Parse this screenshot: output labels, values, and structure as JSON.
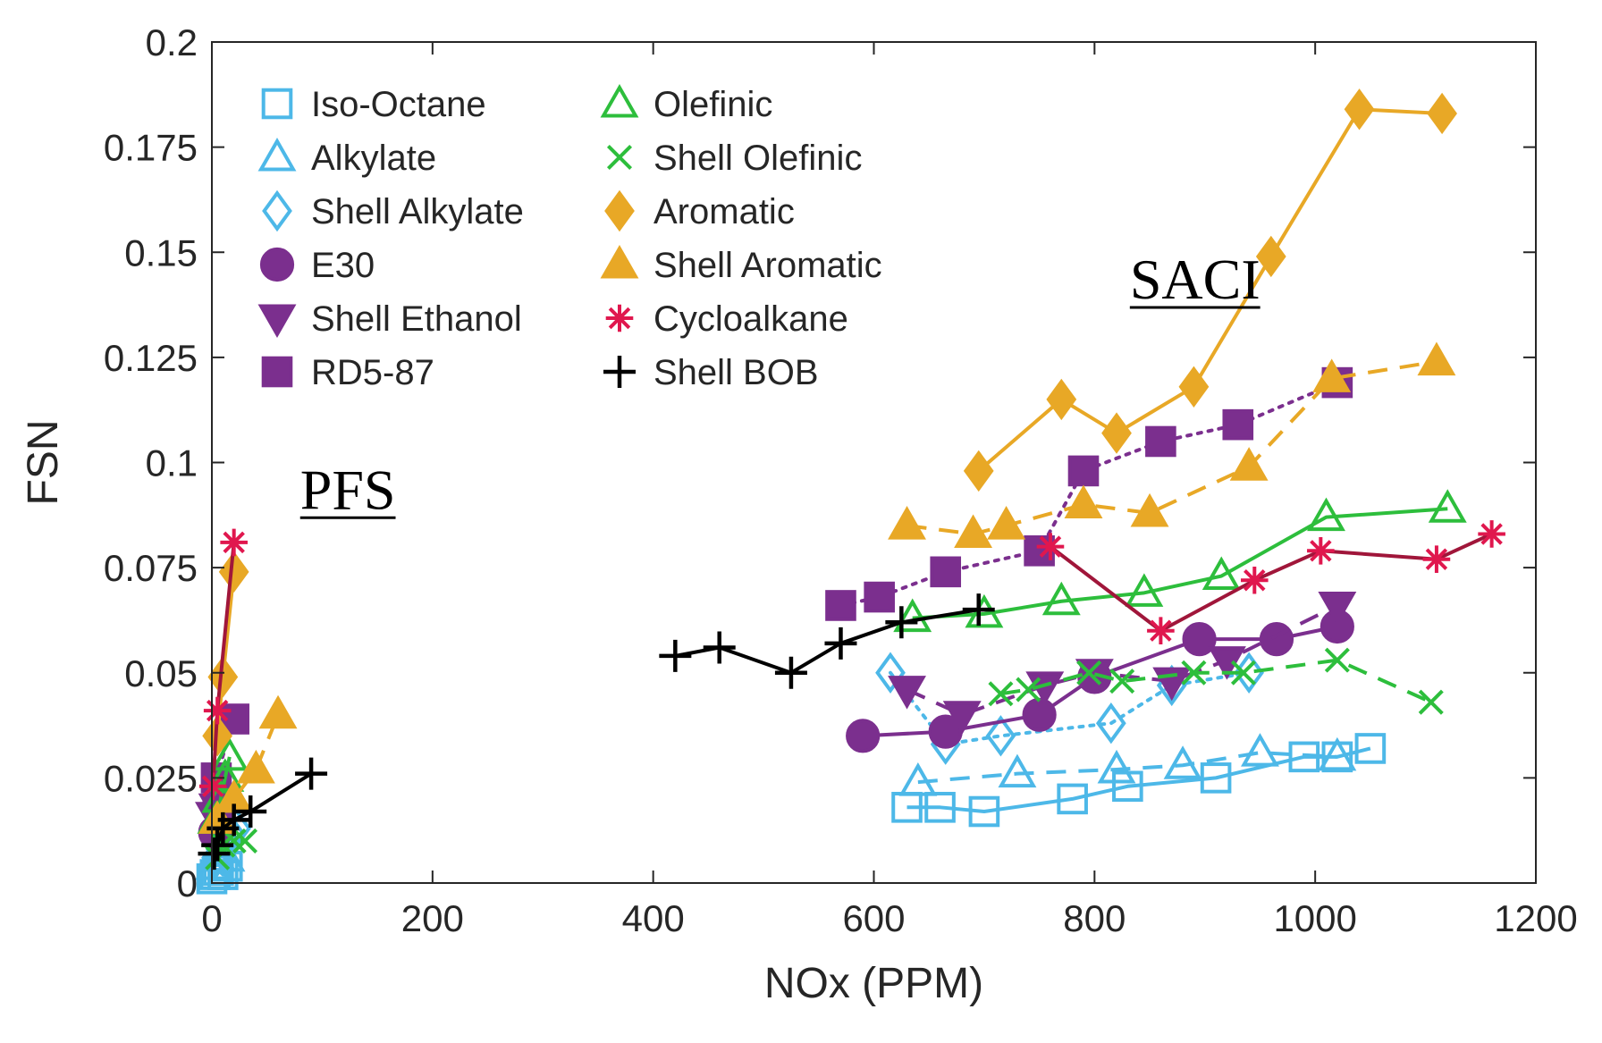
{
  "chart_data": {
    "type": "scatter",
    "title": "",
    "xlabel": "NOx (PPM)",
    "ylabel": "FSN",
    "xlim": [
      0,
      1200
    ],
    "ylim": [
      0,
      0.2
    ],
    "x_ticks": [
      0,
      200,
      400,
      600,
      800,
      1000,
      1200
    ],
    "x_tick_labels": [
      "0",
      "200",
      "400",
      "600",
      "800",
      "1000",
      "1200"
    ],
    "y_ticks": [
      0,
      0.025,
      0.05,
      0.075,
      0.1,
      0.125,
      0.15,
      0.175,
      0.2
    ],
    "y_tick_labels": [
      "0",
      "0.025",
      "0.05",
      "0.075",
      "0.1",
      "0.125",
      "0.15",
      "0.175",
      "0.2"
    ],
    "grid": false,
    "legend_position": "top-left",
    "annotations": [
      {
        "text": "PFS",
        "x": 80,
        "y": 0.089
      },
      {
        "text": "SACI",
        "x": 832,
        "y": 0.139
      }
    ],
    "series": [
      {
        "name": "Iso-Octane",
        "color": "#4db8e8",
        "marker": "square",
        "filled": false,
        "line": "solid",
        "pfs": [
          [
            0,
            0.001
          ],
          [
            3,
            0.002
          ],
          [
            6,
            0.003
          ],
          [
            10,
            0.002
          ],
          [
            14,
            0.004
          ]
        ],
        "saci": [
          [
            630,
            0.018
          ],
          [
            660,
            0.018
          ],
          [
            700,
            0.017
          ],
          [
            780,
            0.02
          ],
          [
            830,
            0.023
          ],
          [
            910,
            0.025
          ],
          [
            990,
            0.03
          ],
          [
            1020,
            0.03
          ],
          [
            1050,
            0.032
          ]
        ]
      },
      {
        "name": "Alkylate",
        "color": "#4db8e8",
        "marker": "triangle",
        "filled": false,
        "line": "dash",
        "pfs": [
          [
            2,
            0.004
          ],
          [
            5,
            0.006
          ],
          [
            9,
            0.008
          ],
          [
            13,
            0.006
          ]
        ],
        "saci": [
          [
            640,
            0.024
          ],
          [
            730,
            0.026
          ],
          [
            820,
            0.027
          ],
          [
            880,
            0.028
          ],
          [
            950,
            0.031
          ],
          [
            1020,
            0.03
          ]
        ]
      },
      {
        "name": "Shell Alkylate",
        "color": "#4db8e8",
        "marker": "diamond",
        "filled": false,
        "line": "dot",
        "pfs": [
          [
            4,
            0.006
          ],
          [
            8,
            0.008
          ],
          [
            12,
            0.01
          ],
          [
            16,
            0.012
          ],
          [
            22,
            0.013
          ]
        ],
        "saci": [
          [
            615,
            0.05
          ],
          [
            665,
            0.033
          ],
          [
            715,
            0.035
          ],
          [
            815,
            0.038
          ],
          [
            870,
            0.047
          ],
          [
            940,
            0.05
          ]
        ]
      },
      {
        "name": "E30",
        "color": "#7b2f8e",
        "marker": "circle",
        "filled": true,
        "line": "solid",
        "pfs": [
          [
            3,
            0.012
          ],
          [
            6,
            0.018
          ]
        ],
        "saci": [
          [
            590,
            0.035
          ],
          [
            665,
            0.036
          ],
          [
            750,
            0.04
          ],
          [
            800,
            0.049
          ],
          [
            895,
            0.058
          ],
          [
            965,
            0.058
          ],
          [
            1020,
            0.061
          ]
        ]
      },
      {
        "name": "Shell Ethanol",
        "color": "#7b2f8e",
        "marker": "triangle-down",
        "filled": true,
        "line": "dash",
        "pfs": [
          [
            2,
            0.016
          ],
          [
            5,
            0.018
          ]
        ],
        "saci": [
          [
            630,
            0.046
          ],
          [
            680,
            0.04
          ],
          [
            755,
            0.047
          ],
          [
            800,
            0.05
          ],
          [
            870,
            0.048
          ],
          [
            920,
            0.053
          ],
          [
            1020,
            0.066
          ]
        ]
      },
      {
        "name": "RD5-87",
        "color": "#7b2f8e",
        "marker": "square",
        "filled": true,
        "line": "dot",
        "pfs": [
          [
            4,
            0.025
          ],
          [
            20,
            0.039
          ]
        ],
        "saci": [
          [
            570,
            0.066
          ],
          [
            605,
            0.068
          ],
          [
            665,
            0.074
          ],
          [
            750,
            0.079
          ],
          [
            790,
            0.098
          ],
          [
            860,
            0.105
          ],
          [
            930,
            0.109
          ],
          [
            1020,
            0.119
          ]
        ]
      },
      {
        "name": "Olefinic",
        "color": "#2dbe3c",
        "marker": "triangle",
        "filled": false,
        "line": "solid",
        "pfs": [
          [
            4,
            0.015
          ],
          [
            8,
            0.02
          ],
          [
            12,
            0.025
          ],
          [
            16,
            0.03
          ]
        ],
        "saci": [
          [
            635,
            0.063
          ],
          [
            700,
            0.064
          ],
          [
            770,
            0.067
          ],
          [
            845,
            0.069
          ],
          [
            915,
            0.073
          ],
          [
            1010,
            0.087
          ],
          [
            1120,
            0.089
          ]
        ]
      },
      {
        "name": "Shell Olefinic",
        "color": "#2dbe3c",
        "marker": "x",
        "filled": false,
        "line": "dash",
        "pfs": [
          [
            5,
            0.006
          ],
          [
            10,
            0.009
          ],
          [
            20,
            0.01
          ],
          [
            30,
            0.01
          ]
        ],
        "saci": [
          [
            715,
            0.045
          ],
          [
            740,
            0.046
          ],
          [
            795,
            0.05
          ],
          [
            825,
            0.048
          ],
          [
            890,
            0.05
          ],
          [
            935,
            0.05
          ],
          [
            1020,
            0.053
          ],
          [
            1105,
            0.043
          ]
        ]
      },
      {
        "name": "Aromatic",
        "color": "#e8a826",
        "marker": "diamond",
        "filled": true,
        "line": "solid",
        "pfs": [
          [
            5,
            0.035
          ],
          [
            10,
            0.049
          ],
          [
            20,
            0.074
          ]
        ],
        "saci": [
          [
            695,
            0.098
          ],
          [
            770,
            0.115
          ],
          [
            820,
            0.107
          ],
          [
            890,
            0.118
          ],
          [
            960,
            0.149
          ],
          [
            1040,
            0.184
          ],
          [
            1115,
            0.183
          ]
        ]
      },
      {
        "name": "Shell Aromatic",
        "color": "#e8a826",
        "marker": "triangle",
        "filled": true,
        "line": "dash",
        "pfs": [
          [
            5,
            0.015
          ],
          [
            20,
            0.02
          ],
          [
            40,
            0.027
          ],
          [
            60,
            0.04
          ]
        ],
        "saci": [
          [
            630,
            0.085
          ],
          [
            690,
            0.083
          ],
          [
            720,
            0.085
          ],
          [
            790,
            0.09
          ],
          [
            850,
            0.088
          ],
          [
            940,
            0.099
          ],
          [
            1015,
            0.12
          ],
          [
            1110,
            0.124
          ]
        ]
      },
      {
        "name": "Cycloalkane",
        "color": "#e0174e",
        "marker": "asterisk",
        "filled": false,
        "line": "solid-maroon",
        "pfs": [
          [
            1,
            0.023
          ],
          [
            5,
            0.041
          ],
          [
            20,
            0.081
          ]
        ],
        "saci": [
          [
            760,
            0.08
          ],
          [
            860,
            0.06
          ],
          [
            945,
            0.072
          ],
          [
            1005,
            0.079
          ],
          [
            1110,
            0.077
          ],
          [
            1160,
            0.083
          ]
        ]
      },
      {
        "name": "Shell BOB",
        "color": "#000000",
        "marker": "plus",
        "filled": false,
        "line": "solid",
        "pfs": [
          [
            2,
            0.007
          ],
          [
            5,
            0.009
          ],
          [
            10,
            0.013
          ],
          [
            20,
            0.015
          ],
          [
            35,
            0.017
          ],
          [
            90,
            0.026
          ]
        ],
        "saci": [
          [
            420,
            0.054
          ],
          [
            460,
            0.056
          ],
          [
            525,
            0.05
          ],
          [
            570,
            0.057
          ],
          [
            625,
            0.062
          ],
          [
            695,
            0.065
          ]
        ]
      }
    ]
  }
}
